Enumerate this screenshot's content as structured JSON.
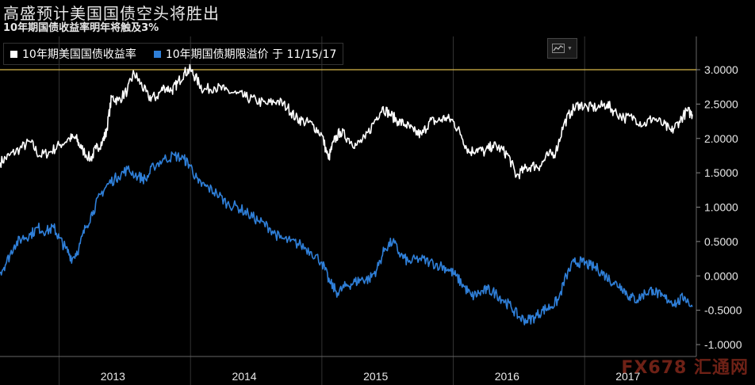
{
  "title": "高盛预计美国国债空头将胜出",
  "subtitle": "10年期国债收益率明年将触及3%",
  "legend": {
    "series1_label": "10年期美国国债收益率",
    "series2_label": "10年期国债期限溢价 于 11/15/17"
  },
  "colors": {
    "series1": "#ffffff",
    "series2": "#2f7fd8",
    "refline": "#d8b84a",
    "grid": "#444444"
  },
  "icons": {
    "chart_type": "line-chart-icon"
  },
  "watermark": "FX678 汇通网",
  "chart_data": {
    "type": "line",
    "x_tick_labels": [
      "2013",
      "2014",
      "2015",
      "2016",
      "2017"
    ],
    "y_tick_labels": [
      "3.0000",
      "2.5000",
      "2.0000",
      "1.5000",
      "1.0000",
      "0.5000",
      "0.0000",
      "-0.5000",
      "-1.0000"
    ],
    "ylim": [
      -1.0,
      3.0
    ],
    "xlim": [
      2012.55,
      2017.85
    ],
    "reference_line": 3.0,
    "series": [
      {
        "name": "10年期美国国债收益率",
        "points": [
          [
            2012.55,
            1.65
          ],
          [
            2012.62,
            1.75
          ],
          [
            2012.7,
            1.85
          ],
          [
            2012.78,
            1.95
          ],
          [
            2012.85,
            1.75
          ],
          [
            2012.93,
            1.8
          ],
          [
            2013.0,
            1.9
          ],
          [
            2013.08,
            2.0
          ],
          [
            2013.13,
            2.0
          ],
          [
            2013.17,
            1.85
          ],
          [
            2013.24,
            1.7
          ],
          [
            2013.28,
            1.85
          ],
          [
            2013.33,
            1.95
          ],
          [
            2013.36,
            2.1
          ],
          [
            2013.4,
            2.6
          ],
          [
            2013.45,
            2.55
          ],
          [
            2013.52,
            2.7
          ],
          [
            2013.57,
            2.95
          ],
          [
            2013.62,
            2.8
          ],
          [
            2013.68,
            2.6
          ],
          [
            2013.74,
            2.6
          ],
          [
            2013.8,
            2.75
          ],
          [
            2013.86,
            2.7
          ],
          [
            2013.9,
            2.8
          ],
          [
            2013.95,
            2.95
          ],
          [
            2014.0,
            3.0
          ],
          [
            2014.05,
            2.85
          ],
          [
            2014.1,
            2.7
          ],
          [
            2014.18,
            2.75
          ],
          [
            2014.26,
            2.7
          ],
          [
            2014.35,
            2.65
          ],
          [
            2014.42,
            2.6
          ],
          [
            2014.5,
            2.55
          ],
          [
            2014.58,
            2.5
          ],
          [
            2014.66,
            2.55
          ],
          [
            2014.74,
            2.45
          ],
          [
            2014.8,
            2.3
          ],
          [
            2014.86,
            2.25
          ],
          [
            2014.93,
            2.2
          ],
          [
            2015.0,
            2.05
          ],
          [
            2015.05,
            1.7
          ],
          [
            2015.09,
            1.95
          ],
          [
            2015.14,
            2.1
          ],
          [
            2015.2,
            2.0
          ],
          [
            2015.26,
            1.9
          ],
          [
            2015.33,
            2.0
          ],
          [
            2015.4,
            2.25
          ],
          [
            2015.46,
            2.45
          ],
          [
            2015.52,
            2.35
          ],
          [
            2015.58,
            2.25
          ],
          [
            2015.64,
            2.2
          ],
          [
            2015.7,
            2.1
          ],
          [
            2015.76,
            2.05
          ],
          [
            2015.82,
            2.25
          ],
          [
            2015.88,
            2.25
          ],
          [
            2015.94,
            2.3
          ],
          [
            2016.0,
            2.25
          ],
          [
            2016.06,
            2.05
          ],
          [
            2016.12,
            1.8
          ],
          [
            2016.18,
            1.85
          ],
          [
            2016.24,
            1.8
          ],
          [
            2016.3,
            1.9
          ],
          [
            2016.36,
            1.85
          ],
          [
            2016.42,
            1.75
          ],
          [
            2016.48,
            1.45
          ],
          [
            2016.54,
            1.55
          ],
          [
            2016.6,
            1.6
          ],
          [
            2016.66,
            1.6
          ],
          [
            2016.72,
            1.75
          ],
          [
            2016.78,
            1.8
          ],
          [
            2016.84,
            2.2
          ],
          [
            2016.9,
            2.4
          ],
          [
            2016.96,
            2.5
          ],
          [
            2017.02,
            2.45
          ],
          [
            2017.1,
            2.45
          ],
          [
            2017.17,
            2.5
          ],
          [
            2017.22,
            2.4
          ],
          [
            2017.3,
            2.3
          ],
          [
            2017.38,
            2.3
          ],
          [
            2017.45,
            2.2
          ],
          [
            2017.52,
            2.3
          ],
          [
            2017.6,
            2.2
          ],
          [
            2017.66,
            2.1
          ],
          [
            2017.72,
            2.25
          ],
          [
            2017.78,
            2.4
          ],
          [
            2017.82,
            2.35
          ]
        ]
      },
      {
        "name": "10年期国债期限溢价 于 11/15/17",
        "points": [
          [
            2012.55,
            0.05
          ],
          [
            2012.6,
            0.2
          ],
          [
            2012.66,
            0.45
          ],
          [
            2012.72,
            0.55
          ],
          [
            2012.78,
            0.6
          ],
          [
            2012.84,
            0.7
          ],
          [
            2012.9,
            0.65
          ],
          [
            2012.96,
            0.7
          ],
          [
            2013.0,
            0.55
          ],
          [
            2013.05,
            0.4
          ],
          [
            2013.1,
            0.25
          ],
          [
            2013.15,
            0.4
          ],
          [
            2013.2,
            0.7
          ],
          [
            2013.26,
            0.95
          ],
          [
            2013.32,
            1.2
          ],
          [
            2013.38,
            1.35
          ],
          [
            2013.45,
            1.45
          ],
          [
            2013.52,
            1.55
          ],
          [
            2013.6,
            1.45
          ],
          [
            2013.66,
            1.4
          ],
          [
            2013.72,
            1.6
          ],
          [
            2013.8,
            1.7
          ],
          [
            2013.88,
            1.75
          ],
          [
            2013.95,
            1.7
          ],
          [
            2014.0,
            1.6
          ],
          [
            2014.06,
            1.35
          ],
          [
            2014.12,
            1.3
          ],
          [
            2014.2,
            1.2
          ],
          [
            2014.28,
            1.05
          ],
          [
            2014.36,
            1.0
          ],
          [
            2014.44,
            0.9
          ],
          [
            2014.52,
            0.8
          ],
          [
            2014.6,
            0.7
          ],
          [
            2014.68,
            0.55
          ],
          [
            2014.76,
            0.5
          ],
          [
            2014.84,
            0.45
          ],
          [
            2014.92,
            0.35
          ],
          [
            2015.0,
            0.2
          ],
          [
            2015.06,
            -0.1
          ],
          [
            2015.12,
            -0.25
          ],
          [
            2015.18,
            -0.15
          ],
          [
            2015.24,
            -0.1
          ],
          [
            2015.3,
            -0.05
          ],
          [
            2015.36,
            -0.05
          ],
          [
            2015.42,
            0.1
          ],
          [
            2015.48,
            0.4
          ],
          [
            2015.54,
            0.5
          ],
          [
            2015.6,
            0.3
          ],
          [
            2015.66,
            0.2
          ],
          [
            2015.74,
            0.25
          ],
          [
            2015.82,
            0.2
          ],
          [
            2015.9,
            0.15
          ],
          [
            2015.96,
            0.1
          ],
          [
            2016.02,
            0.0
          ],
          [
            2016.08,
            -0.15
          ],
          [
            2016.14,
            -0.3
          ],
          [
            2016.2,
            -0.25
          ],
          [
            2016.26,
            -0.2
          ],
          [
            2016.32,
            -0.25
          ],
          [
            2016.38,
            -0.35
          ],
          [
            2016.44,
            -0.45
          ],
          [
            2016.5,
            -0.6
          ],
          [
            2016.56,
            -0.65
          ],
          [
            2016.62,
            -0.6
          ],
          [
            2016.68,
            -0.5
          ],
          [
            2016.74,
            -0.45
          ],
          [
            2016.8,
            -0.35
          ],
          [
            2016.86,
            0.0
          ],
          [
            2016.92,
            0.2
          ],
          [
            2016.98,
            0.2
          ],
          [
            2017.04,
            0.15
          ],
          [
            2017.1,
            0.1
          ],
          [
            2017.16,
            0.0
          ],
          [
            2017.22,
            -0.1
          ],
          [
            2017.28,
            -0.15
          ],
          [
            2017.34,
            -0.3
          ],
          [
            2017.4,
            -0.35
          ],
          [
            2017.46,
            -0.25
          ],
          [
            2017.52,
            -0.2
          ],
          [
            2017.58,
            -0.3
          ],
          [
            2017.64,
            -0.35
          ],
          [
            2017.7,
            -0.4
          ],
          [
            2017.76,
            -0.3
          ],
          [
            2017.82,
            -0.45
          ]
        ]
      }
    ]
  }
}
